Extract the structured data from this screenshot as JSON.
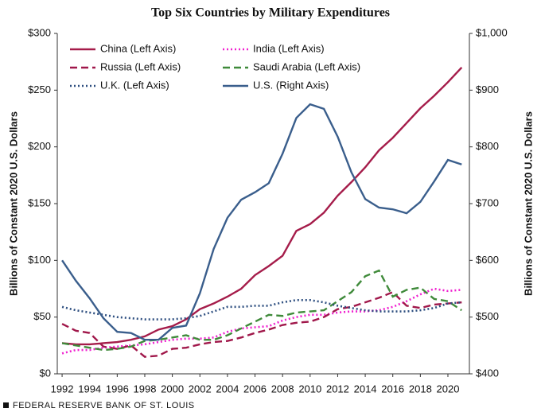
{
  "chart_data": {
    "type": "line",
    "title": "Top Six Countries by Military Expenditures",
    "ylabel": "Billions of Constant 2020 U.S. Dollars",
    "y2label": "Billions of Constant 2020 U.S. Dollars",
    "x": [
      1992,
      1993,
      1994,
      1995,
      1996,
      1997,
      1998,
      1999,
      2000,
      2001,
      2002,
      2003,
      2004,
      2005,
      2006,
      2007,
      2008,
      2009,
      2010,
      2011,
      2012,
      2013,
      2014,
      2015,
      2016,
      2017,
      2018,
      2019,
      2020,
      2021
    ],
    "xlim": [
      1991.65,
      2021.56
    ],
    "xticks": [
      1992,
      1994,
      1996,
      1998,
      2000,
      2002,
      2004,
      2006,
      2008,
      2010,
      2012,
      2014,
      2016,
      2018,
      2020
    ],
    "ylim": [
      0,
      300
    ],
    "yticks": [
      {
        "value": 0,
        "label": "$0"
      },
      {
        "value": 50,
        "label": "$50"
      },
      {
        "value": 100,
        "label": "$100"
      },
      {
        "value": 150,
        "label": "$150"
      },
      {
        "value": 200,
        "label": "$200"
      },
      {
        "value": 250,
        "label": "$250"
      },
      {
        "value": 300,
        "label": "$300"
      }
    ],
    "y2lim": [
      400,
      1000
    ],
    "y2ticks": [
      {
        "value": 400,
        "label": "$400"
      },
      {
        "value": 500,
        "label": "$500"
      },
      {
        "value": 600,
        "label": "$600"
      },
      {
        "value": 700,
        "label": "$700"
      },
      {
        "value": 800,
        "label": "$800"
      },
      {
        "value": 900,
        "label": "$900"
      },
      {
        "value": 1000,
        "label": "$1,000"
      }
    ],
    "series": [
      {
        "name": "China (Left Axis)",
        "color": "#a51c4a",
        "dash": "solid",
        "values": [
          27,
          26,
          26,
          27,
          28,
          30,
          33,
          39,
          42,
          48,
          57,
          62,
          68,
          75,
          87,
          95,
          104,
          126,
          132,
          142,
          157,
          169,
          182,
          197,
          208,
          221,
          234,
          245,
          257,
          270
        ]
      },
      {
        "name": "India (Left Axis)",
        "color": "#f020d0",
        "dash": "dotted",
        "values": [
          18,
          21,
          21,
          23,
          24,
          25,
          26,
          28,
          30,
          31,
          31,
          32,
          37,
          40,
          41,
          42,
          47,
          50,
          52,
          52,
          54,
          55,
          55,
          56,
          59,
          64,
          70,
          75,
          73,
          74
        ]
      },
      {
        "name": "Russia (Left Axis)",
        "color": "#a0174a",
        "dash": "dashed",
        "values": [
          44,
          38,
          36,
          24,
          22,
          25,
          15,
          16,
          22,
          23,
          26,
          28,
          29,
          32,
          36,
          39,
          43,
          45,
          46,
          50,
          57,
          59,
          63,
          67,
          72,
          60,
          58,
          61,
          62,
          63
        ]
      },
      {
        "name": "Saudi Arabia (Left Axis)",
        "color": "#3f8a3a",
        "dash": "dashed",
        "values": [
          27,
          25,
          23,
          21,
          22,
          24,
          29,
          30,
          32,
          34,
          30,
          30,
          34,
          40,
          46,
          52,
          51,
          54,
          55,
          56,
          64,
          72,
          86,
          91,
          68,
          74,
          76,
          66,
          64,
          56
        ]
      },
      {
        "name": "U.K. (Left Axis)",
        "color": "#2e4f80",
        "dash": "dotted",
        "values": [
          59,
          56,
          54,
          52,
          50,
          49,
          48,
          48,
          48,
          49,
          51,
          55,
          59,
          59,
          60,
          60,
          63,
          65,
          65,
          63,
          60,
          58,
          56,
          55,
          55,
          55,
          56,
          58,
          62,
          63
        ]
      },
      {
        "name": "U.S. (Right Axis)",
        "color": "#3a5e8c",
        "dash": "solid",
        "axis": "y2",
        "values": [
          600,
          564,
          533,
          498,
          474,
          472,
          460,
          460,
          481,
          485,
          542,
          620,
          675,
          707,
          720,
          736,
          788,
          851,
          875,
          867,
          818,
          755,
          708,
          693,
          690,
          683,
          703,
          739,
          777,
          769
        ]
      }
    ]
  },
  "source": "FEDERAL RESERVE BANK OF ST. LOUIS"
}
